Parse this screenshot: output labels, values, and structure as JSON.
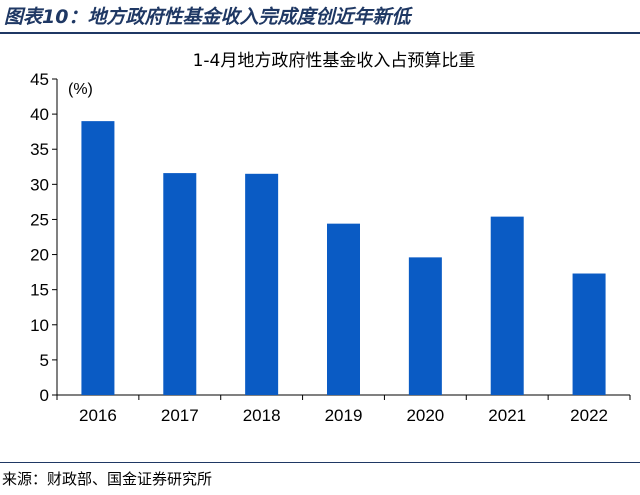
{
  "figure": {
    "title": "图表10：地方政府性基金收入完成度创近年新低",
    "source": "来源：财政部、国金证券研究所"
  },
  "colors": {
    "bar": "#0a5bc4",
    "header_text": "#1f3864",
    "rule": "#1f3864"
  },
  "chart_data": {
    "type": "bar",
    "title": "1-4月地方政府性基金收入占预算比重",
    "unit_label": "(%)",
    "xlabel": "",
    "ylabel": "",
    "categories": [
      "2016",
      "2017",
      "2018",
      "2019",
      "2020",
      "2021",
      "2022"
    ],
    "values": [
      39.0,
      31.6,
      31.5,
      24.4,
      19.6,
      25.4,
      17.3
    ],
    "ylim": [
      0,
      45
    ],
    "yticks": [
      0,
      5,
      10,
      15,
      20,
      25,
      30,
      35,
      40,
      45
    ],
    "grid": false,
    "legend": "none"
  }
}
